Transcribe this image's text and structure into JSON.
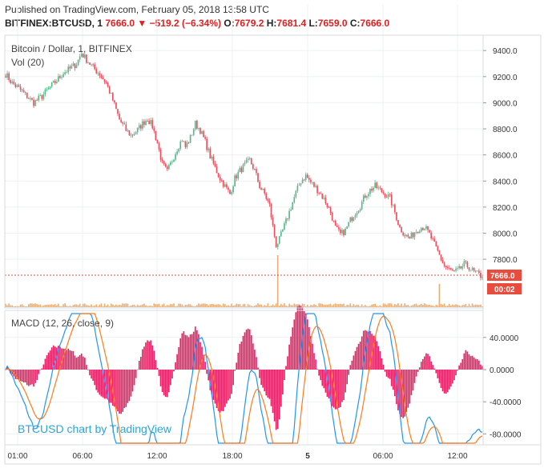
{
  "header": {
    "published": "Published on TradingView.com, February 05, 2018 13:58 UTC",
    "symbol": "BITFINEX:BTCUSD, 1",
    "last": "7666.0",
    "change": "−519.2 (−6.34%)",
    "o_label": "O:",
    "o": "7679.2",
    "h_label": "H:",
    "h": "7681.4",
    "l_label": "L:",
    "l": "7659.0",
    "c_label": "C:",
    "c": "7666.0"
  },
  "colors": {
    "up": "#53b987",
    "down": "#eb4d5c",
    "volume": "#e8b079",
    "macd": "#2196f3",
    "signal": "#ff7b1a",
    "hist": "#e91e63",
    "accent": "#e02020"
  },
  "legend": {
    "title": "Bitcoin / Dollar, 1, BITFINEX",
    "vol": "Vol (20)",
    "macd": "MACD (12, 26, close, 9)"
  },
  "watermark": "BTCUSD chart by TradingView",
  "chart_data": [
    {
      "type": "candlestick",
      "title": "Bitcoin / Dollar, 1, BITFINEX",
      "ylim": [
        7500,
        9500
      ],
      "y_ticks": [
        "9400.0",
        "9200.0",
        "9000.0",
        "8800.0",
        "8600.0",
        "8400.0",
        "8200.0",
        "8000.0",
        "7800.0"
      ],
      "x_ticks": [
        "01:00",
        "06:00",
        "12:00",
        "18:00",
        "5",
        "06:00",
        "12:00"
      ],
      "last_price": "7666.0",
      "countdown": "00:02",
      "close_path": [
        [
          0,
          9220
        ],
        [
          4,
          9150
        ],
        [
          8,
          9110
        ],
        [
          12,
          9060
        ],
        [
          17,
          9000
        ],
        [
          22,
          9050
        ],
        [
          27,
          9120
        ],
        [
          31,
          9170
        ],
        [
          35,
          9230
        ],
        [
          39,
          9260
        ],
        [
          43,
          9300
        ],
        [
          46,
          9380
        ],
        [
          49,
          9330
        ],
        [
          53,
          9270
        ],
        [
          57,
          9220
        ],
        [
          61,
          9150
        ],
        [
          65,
          9020
        ],
        [
          69,
          8870
        ],
        [
          73,
          8790
        ],
        [
          76,
          8750
        ],
        [
          80,
          8790
        ],
        [
          83,
          8840
        ],
        [
          86,
          8880
        ],
        [
          89,
          8820
        ],
        [
          92,
          8690
        ],
        [
          95,
          8530
        ],
        [
          98,
          8470
        ],
        [
          101,
          8560
        ],
        [
          104,
          8650
        ],
        [
          107,
          8720
        ],
        [
          109,
          8660
        ],
        [
          112,
          8730
        ],
        [
          115,
          8840
        ],
        [
          118,
          8790
        ],
        [
          121,
          8700
        ],
        [
          124,
          8590
        ],
        [
          127,
          8500
        ],
        [
          130,
          8420
        ],
        [
          133,
          8360
        ],
        [
          136,
          8300
        ],
        [
          139,
          8420
        ],
        [
          142,
          8480
        ],
        [
          145,
          8520
        ],
        [
          148,
          8560
        ],
        [
          151,
          8480
        ],
        [
          154,
          8360
        ],
        [
          157,
          8300
        ],
        [
          160,
          8210
        ],
        [
          162,
          8050
        ],
        [
          164,
          7910
        ],
        [
          166,
          7950
        ],
        [
          168,
          8020
        ],
        [
          170,
          8090
        ],
        [
          173,
          8200
        ],
        [
          176,
          8310
        ],
        [
          179,
          8400
        ],
        [
          182,
          8440
        ],
        [
          185,
          8390
        ],
        [
          188,
          8350
        ],
        [
          191,
          8300
        ],
        [
          194,
          8240
        ],
        [
          197,
          8160
        ],
        [
          200,
          8040
        ],
        [
          203,
          7990
        ],
        [
          206,
          8020
        ],
        [
          209,
          8100
        ],
        [
          212,
          8160
        ],
        [
          215,
          8210
        ],
        [
          218,
          8290
        ],
        [
          221,
          8330
        ],
        [
          224,
          8360
        ],
        [
          227,
          8330
        ],
        [
          230,
          8300
        ],
        [
          233,
          8270
        ],
        [
          236,
          8160
        ],
        [
          239,
          8040
        ],
        [
          242,
          7990
        ],
        [
          245,
          7960
        ],
        [
          248,
          8010
        ],
        [
          251,
          8040
        ],
        [
          254,
          8050
        ],
        [
          257,
          7990
        ],
        [
          260,
          7910
        ],
        [
          263,
          7830
        ],
        [
          266,
          7750
        ],
        [
          269,
          7720
        ],
        [
          272,
          7700
        ],
        [
          275,
          7720
        ],
        [
          278,
          7760
        ],
        [
          281,
          7740
        ],
        [
          284,
          7700
        ],
        [
          287,
          7680
        ],
        [
          289,
          7666
        ]
      ],
      "volume_spikes": [
        [
          165,
          1.0
        ],
        [
          263,
          0.45
        ]
      ]
    },
    {
      "type": "line",
      "title": "MACD (12, 26, close, 9)",
      "ylim": [
        -90,
        65
      ],
      "y_ticks": [
        "40.0000",
        "0.0000",
        "-40.0000",
        "-80.0000"
      ]
    }
  ]
}
